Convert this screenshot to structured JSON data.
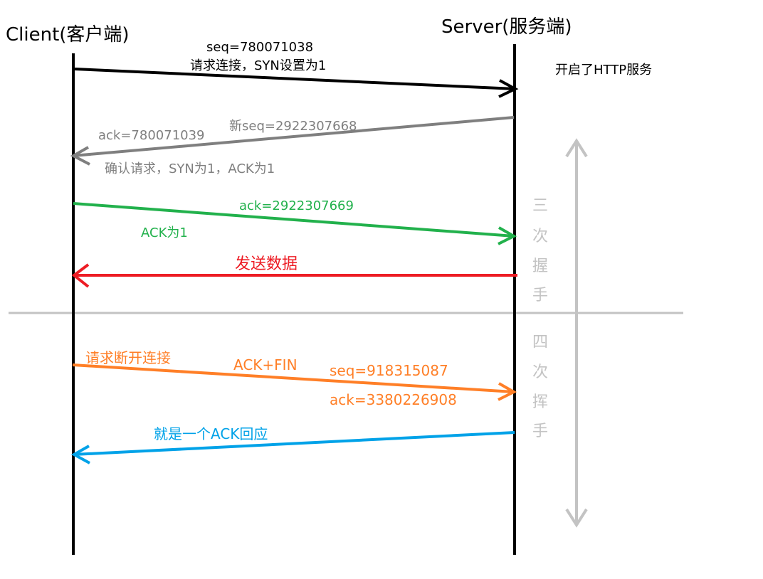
{
  "client": {
    "label": "Client(客户端)"
  },
  "server": {
    "label": "Server(服务端)",
    "note": "开启了HTTP服务"
  },
  "messages": [
    {
      "name": "msg-syn",
      "color": "#000000",
      "direction": "to-server",
      "labels": [
        "seq=780071038",
        "请求连接，SYN设置为1"
      ]
    },
    {
      "name": "msg-syn-ack",
      "color": "#7f7f7f",
      "direction": "to-client",
      "labels": [
        "ack=780071039",
        "新seq=2922307668",
        "确认请求，SYN为1，ACK为1"
      ]
    },
    {
      "name": "msg-ack",
      "color": "#22b14c",
      "direction": "to-server",
      "labels": [
        "ack=2922307669",
        "ACK为1"
      ]
    },
    {
      "name": "msg-data",
      "color": "#ed1c24",
      "direction": "to-client",
      "labels": [
        "发送数据"
      ]
    },
    {
      "name": "msg-fin",
      "color": "#ff7f27",
      "direction": "to-server",
      "labels": [
        "请求断开连接",
        "ACK+FIN",
        "seq=918315087",
        "ack=3380226908"
      ]
    },
    {
      "name": "msg-fin-ack",
      "color": "#00a2e8",
      "direction": "to-client",
      "labels": [
        "就是一个ACK回应"
      ]
    }
  ],
  "phases": {
    "handshake": [
      "三",
      "次",
      "握",
      "手"
    ],
    "wave": [
      "四",
      "次",
      "挥",
      "手"
    ]
  },
  "colors": {
    "lifeline": "#000000",
    "divider": "#c3c3c3",
    "phase": "#c3c3c3"
  }
}
